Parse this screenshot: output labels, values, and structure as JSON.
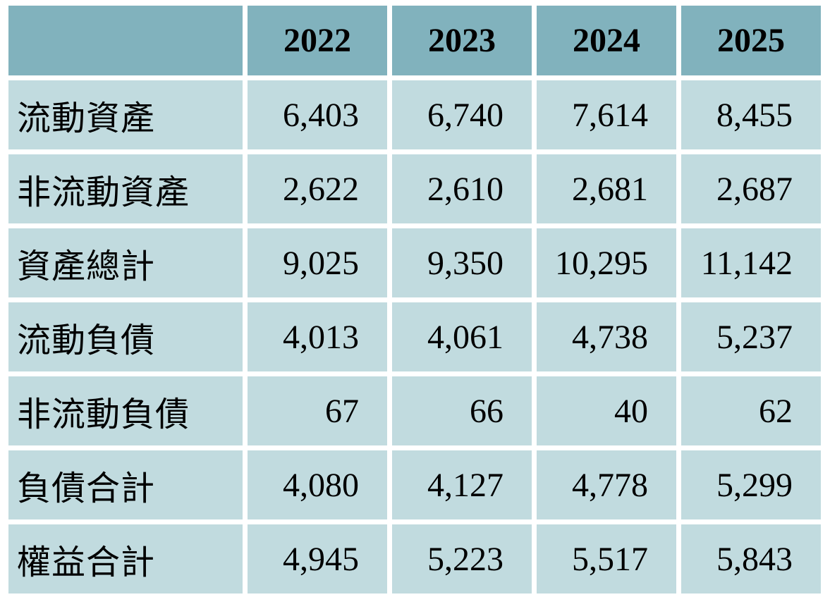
{
  "table": {
    "header": {
      "corner_label": "",
      "years": [
        "2022",
        "2023",
        "2024",
        "2025"
      ]
    },
    "rows": [
      {
        "label": "流動資產",
        "values": [
          "6,403",
          "6,740",
          "7,614",
          "8,455"
        ]
      },
      {
        "label": "非流動資產",
        "values": [
          "2,622",
          "2,610",
          "2,681",
          "2,687"
        ]
      },
      {
        "label": "資產總計",
        "values": [
          "9,025",
          "9,350",
          "10,295",
          "11,142"
        ]
      },
      {
        "label": "流動負債",
        "values": [
          "4,013",
          "4,061",
          "4,738",
          "5,237"
        ]
      },
      {
        "label": "非流動負債",
        "values": [
          "67",
          "66",
          "40",
          "62"
        ]
      },
      {
        "label": "負債合計",
        "values": [
          "4,080",
          "4,127",
          "4,778",
          "5,299"
        ]
      },
      {
        "label": "權益合計",
        "values": [
          "4,945",
          "5,223",
          "5,517",
          "5,843"
        ]
      }
    ],
    "colors": {
      "header_bg": "#81b2bd",
      "row_bg": "#c1dbdf",
      "gap": "#ffffff",
      "text": "#000000"
    }
  },
  "chart_data": {
    "type": "table",
    "title": "",
    "categories": [
      "2022",
      "2023",
      "2024",
      "2025"
    ],
    "series": [
      {
        "name": "流動資產",
        "values": [
          6403,
          6740,
          7614,
          8455
        ]
      },
      {
        "name": "非流動資產",
        "values": [
          2622,
          2610,
          2681,
          2687
        ]
      },
      {
        "name": "資產總計",
        "values": [
          9025,
          9350,
          10295,
          11142
        ]
      },
      {
        "name": "流動負債",
        "values": [
          4013,
          4061,
          4738,
          5237
        ]
      },
      {
        "name": "非流動負債",
        "values": [
          67,
          66,
          40,
          62
        ]
      },
      {
        "name": "負債合計",
        "values": [
          4080,
          4127,
          4778,
          5299
        ]
      },
      {
        "name": "權益合計",
        "values": [
          4945,
          5223,
          5517,
          5843
        ]
      }
    ],
    "layout": {
      "grid": false,
      "legend": "none",
      "value_alignment": "right",
      "header_style": "bold"
    }
  }
}
